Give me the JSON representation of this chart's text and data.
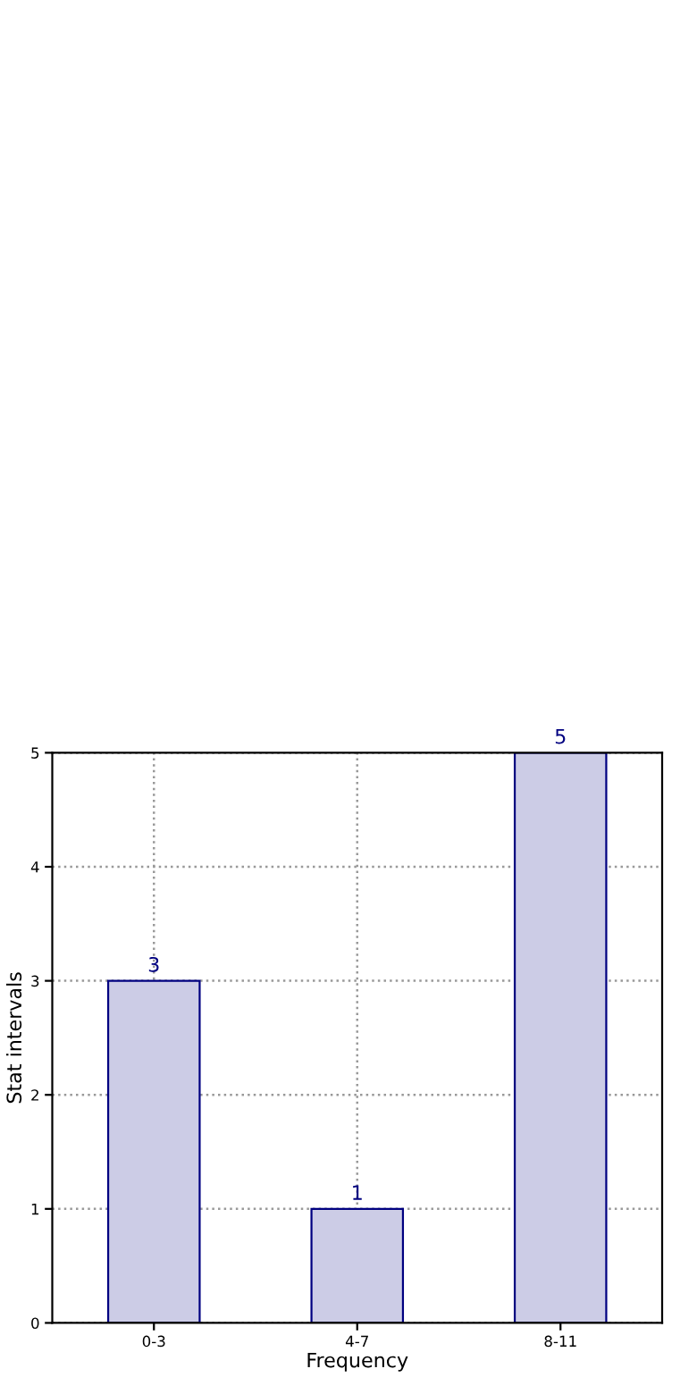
{
  "chart_data": {
    "type": "bar",
    "xlabel": "Frequency",
    "ylabel": "Stat intervals",
    "categories": [
      "0-3",
      "4-7",
      "8-11"
    ],
    "values": [
      3,
      1,
      5
    ],
    "color": "#ccccE6",
    "ylim": [
      0,
      5
    ],
    "yticks": [
      0,
      1,
      2,
      3,
      4,
      5
    ],
    "grid": true,
    "data_labels": true
  }
}
